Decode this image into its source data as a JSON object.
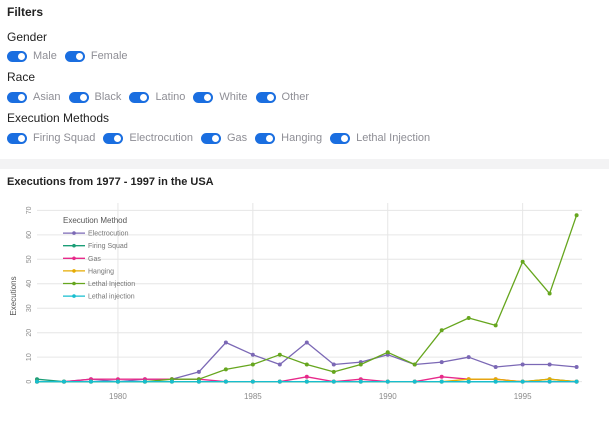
{
  "filters": {
    "title": "Filters",
    "groups": [
      {
        "label": "Gender",
        "options": [
          "Male",
          "Female"
        ]
      },
      {
        "label": "Race",
        "options": [
          "Asian",
          "Black",
          "Latino",
          "White",
          "Other"
        ]
      },
      {
        "label": "Execution Methods",
        "options": [
          "Firing Squad",
          "Electrocution",
          "Gas",
          "Hanging",
          "Lethal Injection"
        ]
      }
    ],
    "toggle_color": "#1a6ee0"
  },
  "chart": {
    "title": "Executions from 1977 - 1997 in the USA"
  },
  "chart_data": {
    "type": "line",
    "ylabel": "Executions",
    "xlabel": "",
    "xlim": [
      1977,
      1997.2
    ],
    "ylim": [
      -3,
      73
    ],
    "x_ticks": [
      1980,
      1985,
      1990,
      1995
    ],
    "y_ticks": [
      0,
      10,
      20,
      30,
      40,
      50,
      60,
      70
    ],
    "legend_title": "Execution Method",
    "legend_position": "top-left",
    "x": [
      1977,
      1978,
      1979,
      1980,
      1981,
      1982,
      1983,
      1984,
      1985,
      1986,
      1987,
      1988,
      1989,
      1990,
      1991,
      1992,
      1993,
      1994,
      1995,
      1996,
      1997
    ],
    "series": [
      {
        "name": "Electrocution",
        "color": "#7b68b5",
        "values": [
          0,
          0,
          1,
          0,
          1,
          1,
          4,
          16,
          11,
          7,
          16,
          7,
          8,
          11,
          7,
          8,
          10,
          6,
          7,
          7,
          6
        ]
      },
      {
        "name": "Firing Squad",
        "color": "#1b9e77",
        "values": [
          1,
          0,
          0,
          0,
          0,
          0,
          0,
          0,
          0,
          0,
          0,
          0,
          0,
          0,
          0,
          0,
          0,
          0,
          0,
          1,
          0
        ]
      },
      {
        "name": "Gas",
        "color": "#e7298a",
        "values": [
          0,
          0,
          1,
          1,
          1,
          1,
          1,
          0,
          0,
          0,
          2,
          0,
          1,
          0,
          0,
          2,
          1,
          1,
          0,
          0,
          0
        ]
      },
      {
        "name": "Hanging",
        "color": "#e6ab02",
        "values": [
          0,
          0,
          0,
          0,
          0,
          0,
          0,
          0,
          0,
          0,
          0,
          0,
          0,
          0,
          0,
          0,
          1,
          1,
          0,
          1,
          0
        ]
      },
      {
        "name": "Lethal Injection",
        "color": "#66a61e",
        "values": [
          0,
          0,
          0,
          0,
          0,
          1,
          1,
          5,
          7,
          11,
          7,
          4,
          7,
          12,
          7,
          21,
          26,
          23,
          49,
          36,
          68
        ]
      },
      {
        "name": "Lethal injection",
        "color": "#17becf",
        "values": [
          0,
          0,
          0,
          0,
          0,
          0,
          0,
          0,
          0,
          0,
          0,
          0,
          0,
          0,
          0,
          0,
          0,
          0,
          0,
          0,
          0
        ]
      }
    ]
  }
}
